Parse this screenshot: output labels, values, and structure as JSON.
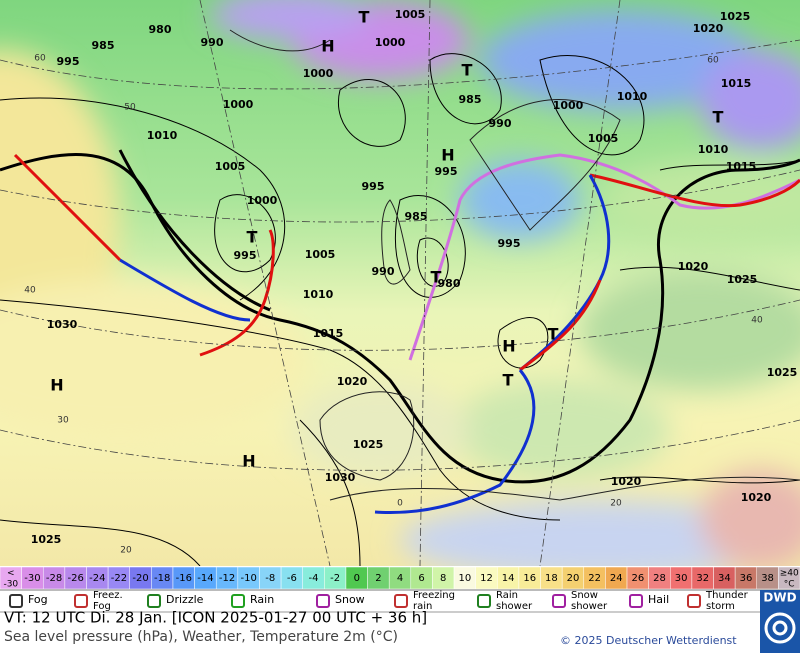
{
  "map": {
    "isobar_labels": [
      995,
      985,
      980,
      990,
      1005,
      1000,
      1000,
      1000,
      1010,
      1005,
      1000,
      995,
      1005,
      1010,
      1015,
      1020,
      1025,
      1030,
      1030,
      1025,
      985,
      990,
      995,
      995,
      985,
      990,
      980,
      995,
      1000,
      1005,
      1010,
      1025,
      1020,
      1015,
      1010,
      1015,
      1020,
      1025,
      1025,
      1020,
      1020
    ],
    "latitude_labels": [
      60,
      50,
      40,
      30,
      20,
      0,
      20,
      40,
      60
    ],
    "centers": [
      "H",
      "T",
      "T",
      "H",
      "T",
      "T",
      "H",
      "T",
      "T",
      "H",
      "H",
      "T"
    ]
  },
  "temperature_scale": [
    [
      "<",
      "-30"
    ],
    -30,
    -28,
    -26,
    -24,
    -22,
    -20,
    -18,
    -16,
    -14,
    -12,
    -10,
    -8,
    -6,
    -4,
    -2,
    0,
    2,
    4,
    6,
    8,
    10,
    12,
    14,
    16,
    18,
    20,
    22,
    24,
    26,
    28,
    30,
    32,
    34,
    36,
    38,
    [
      "≥40",
      "°C"
    ]
  ],
  "weather_legend": [
    [
      "Fog"
    ],
    [
      "Freez.",
      "Fog"
    ],
    [
      "Drizzle"
    ],
    [
      "Rain"
    ],
    [
      "Snow"
    ],
    [
      "Freezing",
      "rain"
    ],
    [
      "Rain",
      "shower"
    ],
    [
      "Snow",
      "shower"
    ],
    [
      "Hail"
    ],
    [
      "Thunder",
      "storm"
    ]
  ],
  "footer": {
    "valid_time": "VT: 12 UTC Di.  28 Jan. [ICON 2025-01-27  00 UTC + 36 h]",
    "subtitle": "Sea level pressure (hPa), Weather, Temperature 2m (°C)",
    "copyright": "© 2025 Deutscher Wetterdienst",
    "logo": "DWD"
  }
}
